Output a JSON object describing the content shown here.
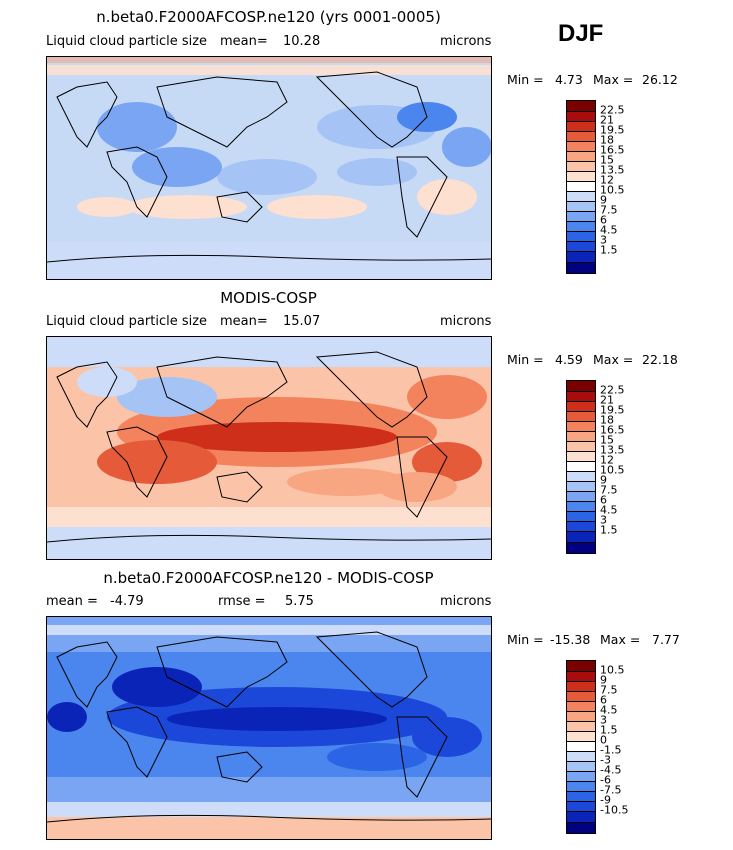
{
  "season": "DJF",
  "colors": {
    "ocean_base": "#c6d9f5",
    "coast": "#000000",
    "scale": [
      "#000080",
      "#0b24b8",
      "#1b48d9",
      "#2b65e6",
      "#4b85ee",
      "#7aa5f3",
      "#a6c3f6",
      "#cddcf8",
      "#ffffff",
      "#fde0d0",
      "#fbc4a8",
      "#f8a682",
      "#f3835d",
      "#e55a38",
      "#cd2f1b",
      "#a80c0c",
      "#7a0000"
    ]
  },
  "panels": [
    {
      "title": "n.beta0.F2000AFCOSP.ne120 (yrs 0001-0005)",
      "label_left": "Liquid cloud particle size",
      "mean_label": "mean=",
      "mean_value": "10.28",
      "units": "microns",
      "min_label": "Min =",
      "min_value": "4.73",
      "max_label": "Max =",
      "max_value": "26.12",
      "colorbar_labels": [
        "22.5",
        "21",
        "19.5",
        "18",
        "16.5",
        "15",
        "13.5",
        "12",
        "10.5",
        "9",
        "7.5",
        "6",
        "4.5",
        "3",
        "1.5"
      ]
    },
    {
      "title": "MODIS-COSP",
      "label_left": "Liquid cloud particle size",
      "mean_label": "mean=",
      "mean_value": "15.07",
      "units": "microns",
      "min_label": "Min =",
      "min_value": "4.59",
      "max_label": "Max =",
      "max_value": "22.18",
      "colorbar_labels": [
        "22.5",
        "21",
        "19.5",
        "18",
        "16.5",
        "15",
        "13.5",
        "12",
        "10.5",
        "9",
        "7.5",
        "6",
        "4.5",
        "3",
        "1.5"
      ]
    },
    {
      "title": "n.beta0.F2000AFCOSP.ne120 - MODIS-COSP",
      "mean_label": "mean =",
      "mean_value": "-4.79",
      "rmse_label": "rmse =",
      "rmse_value": "5.75",
      "units": "microns",
      "min_label": "Min =",
      "min_value": "-15.38",
      "max_label": "Max =",
      "max_value": "7.77",
      "colorbar_labels": [
        "10.5",
        "9",
        "7.5",
        "6",
        "4.5",
        "3",
        "1.5",
        "0",
        "-1.5",
        "-3",
        "-4.5",
        "-6",
        "-7.5",
        "-9",
        "-10.5"
      ]
    }
  ]
}
